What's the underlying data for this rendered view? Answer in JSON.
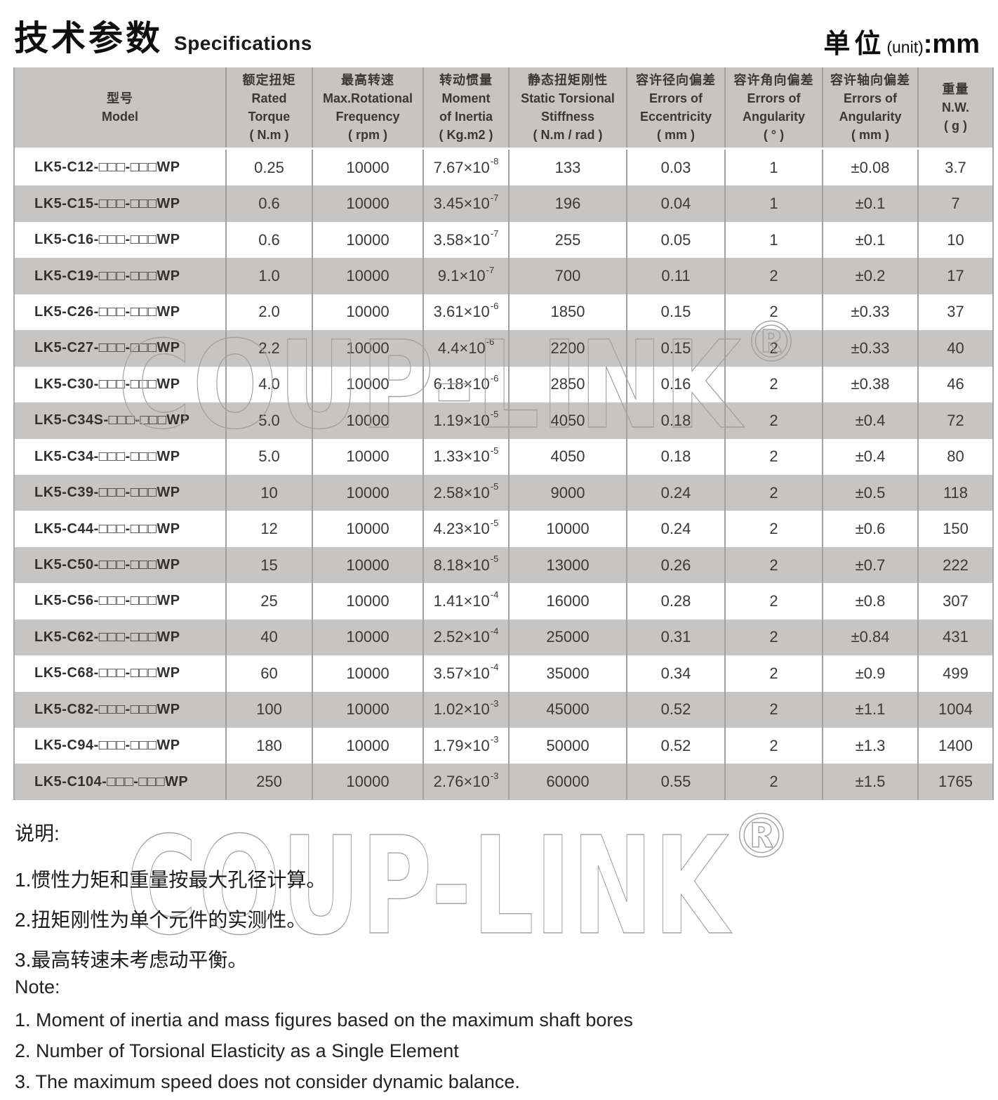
{
  "header": {
    "title_zh": "技术参数",
    "title_en": "Specifications",
    "unit_zh": "单位",
    "unit_paren": "(unit)",
    "unit_value": ":mm"
  },
  "watermark": {
    "text": "COUP-LINK",
    "reg": "®"
  },
  "table": {
    "columns": [
      {
        "zh": "型号",
        "lines": [
          "Model"
        ]
      },
      {
        "zh": "额定扭矩",
        "lines": [
          "Rated",
          "Torque",
          "( N.m )"
        ]
      },
      {
        "zh": "最高转速",
        "lines": [
          "Max.Rotational",
          "Frequency",
          "( rpm )"
        ]
      },
      {
        "zh": "转动惯量",
        "lines": [
          "Moment",
          "of Inertia",
          "( Kg.m2 )"
        ]
      },
      {
        "zh": "静态扭矩刚性",
        "lines": [
          "Static Torsional",
          "Stiffness",
          "( N.m / rad )"
        ]
      },
      {
        "zh": "容许径向偏差",
        "lines": [
          "Errors of",
          "Eccentricity",
          "( mm )"
        ]
      },
      {
        "zh": "容许角向偏差",
        "lines": [
          "Errors of",
          "Angularity",
          "( ° )"
        ]
      },
      {
        "zh": "容许轴向偏差",
        "lines": [
          "Errors of",
          "Angularity",
          "( mm )"
        ]
      },
      {
        "zh": "重量",
        "lines": [
          "N.W.",
          "( g )"
        ]
      }
    ],
    "rows": [
      {
        "model": "LK5-C12-□□□-□□□WP",
        "torque": "0.25",
        "speed": "10000",
        "inertia_base": "7.67×10",
        "inertia_exp": "-8",
        "stiffness": "133",
        "eccentricity": "0.03",
        "angularity_deg": "1",
        "angularity_mm": "±0.08",
        "weight": "3.7"
      },
      {
        "model": "LK5-C15-□□□-□□□WP",
        "torque": "0.6",
        "speed": "10000",
        "inertia_base": "3.45×10",
        "inertia_exp": "-7",
        "stiffness": "196",
        "eccentricity": "0.04",
        "angularity_deg": "1",
        "angularity_mm": "±0.1",
        "weight": "7"
      },
      {
        "model": "LK5-C16-□□□-□□□WP",
        "torque": "0.6",
        "speed": "10000",
        "inertia_base": "3.58×10",
        "inertia_exp": "-7",
        "stiffness": "255",
        "eccentricity": "0.05",
        "angularity_deg": "1",
        "angularity_mm": "±0.1",
        "weight": "10"
      },
      {
        "model": "LK5-C19-□□□-□□□WP",
        "torque": "1.0",
        "speed": "10000",
        "inertia_base": "9.1×10",
        "inertia_exp": "-7",
        "stiffness": "700",
        "eccentricity": "0.11",
        "angularity_deg": "2",
        "angularity_mm": "±0.2",
        "weight": "17"
      },
      {
        "model": "LK5-C26-□□□-□□□WP",
        "torque": "2.0",
        "speed": "10000",
        "inertia_base": "3.61×10",
        "inertia_exp": "-6",
        "stiffness": "1850",
        "eccentricity": "0.15",
        "angularity_deg": "2",
        "angularity_mm": "±0.33",
        "weight": "37"
      },
      {
        "model": "LK5-C27-□□□-□□□WP",
        "torque": "2.2",
        "speed": "10000",
        "inertia_base": "4.4×10",
        "inertia_exp": "-6",
        "stiffness": "2200",
        "eccentricity": "0.15",
        "angularity_deg": "2",
        "angularity_mm": "±0.33",
        "weight": "40"
      },
      {
        "model": "LK5-C30-□□□-□□□WP",
        "torque": "4.0",
        "speed": "10000",
        "inertia_base": "6.18×10",
        "inertia_exp": "-6",
        "stiffness": "2850",
        "eccentricity": "0.16",
        "angularity_deg": "2",
        "angularity_mm": "±0.38",
        "weight": "46"
      },
      {
        "model": "LK5-C34S-□□□-□□□WP",
        "torque": "5.0",
        "speed": "10000",
        "inertia_base": "1.19×10",
        "inertia_exp": "-5",
        "stiffness": "4050",
        "eccentricity": "0.18",
        "angularity_deg": "2",
        "angularity_mm": "±0.4",
        "weight": "72"
      },
      {
        "model": "LK5-C34-□□□-□□□WP",
        "torque": "5.0",
        "speed": "10000",
        "inertia_base": "1.33×10",
        "inertia_exp": "-5",
        "stiffness": "4050",
        "eccentricity": "0.18",
        "angularity_deg": "2",
        "angularity_mm": "±0.4",
        "weight": "80"
      },
      {
        "model": "LK5-C39-□□□-□□□WP",
        "torque": "10",
        "speed": "10000",
        "inertia_base": "2.58×10",
        "inertia_exp": "-5",
        "stiffness": "9000",
        "eccentricity": "0.24",
        "angularity_deg": "2",
        "angularity_mm": "±0.5",
        "weight": "118"
      },
      {
        "model": "LK5-C44-□□□-□□□WP",
        "torque": "12",
        "speed": "10000",
        "inertia_base": "4.23×10",
        "inertia_exp": "-5",
        "stiffness": "10000",
        "eccentricity": "0.24",
        "angularity_deg": "2",
        "angularity_mm": "±0.6",
        "weight": "150"
      },
      {
        "model": "LK5-C50-□□□-□□□WP",
        "torque": "15",
        "speed": "10000",
        "inertia_base": "8.18×10",
        "inertia_exp": "-5",
        "stiffness": "13000",
        "eccentricity": "0.26",
        "angularity_deg": "2",
        "angularity_mm": "±0.7",
        "weight": "222"
      },
      {
        "model": "LK5-C56-□□□-□□□WP",
        "torque": "25",
        "speed": "10000",
        "inertia_base": "1.41×10",
        "inertia_exp": "-4",
        "stiffness": "16000",
        "eccentricity": "0.28",
        "angularity_deg": "2",
        "angularity_mm": "±0.8",
        "weight": "307"
      },
      {
        "model": "LK5-C62-□□□-□□□WP",
        "torque": "40",
        "speed": "10000",
        "inertia_base": "2.52×10",
        "inertia_exp": "-4",
        "stiffness": "25000",
        "eccentricity": "0.31",
        "angularity_deg": "2",
        "angularity_mm": "±0.84",
        "weight": "431"
      },
      {
        "model": "LK5-C68-□□□-□□□WP",
        "torque": "60",
        "speed": "10000",
        "inertia_base": "3.57×10",
        "inertia_exp": "-4",
        "stiffness": "35000",
        "eccentricity": "0.34",
        "angularity_deg": "2",
        "angularity_mm": "±0.9",
        "weight": "499"
      },
      {
        "model": "LK5-C82-□□□-□□□WP",
        "torque": "100",
        "speed": "10000",
        "inertia_base": "1.02×10",
        "inertia_exp": "-3",
        "stiffness": "45000",
        "eccentricity": "0.52",
        "angularity_deg": "2",
        "angularity_mm": "±1.1",
        "weight": "1004"
      },
      {
        "model": "LK5-C94-□□□-□□□WP",
        "torque": "180",
        "speed": "10000",
        "inertia_base": "1.79×10",
        "inertia_exp": "-3",
        "stiffness": "50000",
        "eccentricity": "0.52",
        "angularity_deg": "2",
        "angularity_mm": "±1.3",
        "weight": "1400"
      },
      {
        "model": "LK5-C104-□□□-□□□WP",
        "torque": "250",
        "speed": "10000",
        "inertia_base": "2.76×10",
        "inertia_exp": "-3",
        "stiffness": "60000",
        "eccentricity": "0.55",
        "angularity_deg": "2",
        "angularity_mm": "±1.5",
        "weight": "1765"
      }
    ]
  },
  "notes_zh": {
    "title": "说明:",
    "items": [
      "1.惯性力矩和重量按最大孔径计算。",
      "2.扭矩刚性为单个元件的实测性。",
      "3.最高转速未考虑动平衡。"
    ]
  },
  "notes_en": {
    "title": "Note:",
    "items": [
      "1. Moment of inertia and mass figures based on the maximum shaft bores",
      "2. Number of Torsional Elasticity as a Single Element",
      "3. The maximum speed does not consider dynamic balance."
    ]
  }
}
